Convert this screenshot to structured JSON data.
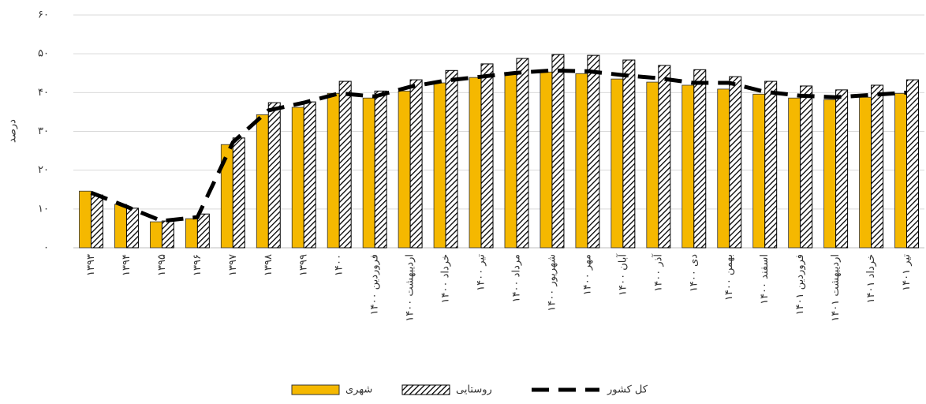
{
  "chart_data": {
    "type": "bar-line",
    "y_label": "درصد",
    "categories": [
      "۱۳۹۳",
      "۱۳۹۴",
      "۱۳۹۵",
      "۱۳۹۶",
      "۱۳۹۷",
      "۱۳۹۸",
      "۱۳۹۹",
      "۱۴۰۰",
      "فروردین ۱۴۰۰",
      "اردیبهشت ۱۴۰۰",
      "خرداد ۱۴۰۰",
      "تیر ۱۴۰۰",
      "مرداد ۱۴۰۰",
      "شهریور ۱۴۰۰",
      "مهر ۱۴۰۰",
      "آبان ۱۴۰۰",
      "آذر ۱۴۰۰",
      "دی ۱۴۰۰",
      "بهمن ۱۴۰۰",
      "اسفند ۱۴۰۰",
      "فروردین ۱۴۰۱",
      "اردیبهشت ۱۴۰۱",
      "خرداد ۱۴۰۱",
      "تیر ۱۴۰۱"
    ],
    "series": [
      {
        "name": "شهری",
        "color": "#f5b800",
        "style": "bar",
        "values": [
          14.6,
          11.2,
          6.7,
          7.5,
          26.6,
          34.3,
          36.2,
          39.8,
          38.6,
          40.4,
          42.5,
          43.9,
          44.7,
          45.3,
          44.9,
          43.5,
          42.7,
          41.9,
          40.9,
          39.6,
          38.6,
          38.2,
          38.8,
          39.8
        ]
      },
      {
        "name": "روستایی",
        "color": "#000000",
        "style": "hatched-bar",
        "values": [
          13.6,
          10.2,
          6.9,
          8.7,
          28.3,
          37.4,
          37.6,
          42.9,
          40.4,
          43.3,
          45.7,
          47.4,
          48.8,
          49.8,
          49.6,
          48.4,
          47.0,
          45.9,
          44.1,
          42.9,
          41.7,
          40.7,
          41.9,
          43.3
        ]
      },
      {
        "name": "کل کشور",
        "color": "#000000",
        "style": "dashed-line",
        "values": [
          14.2,
          10.6,
          6.9,
          7.9,
          27.2,
          35.4,
          37.4,
          39.8,
          39.0,
          41.5,
          43.1,
          44.1,
          45.1,
          45.7,
          45.5,
          44.5,
          43.7,
          42.5,
          42.5,
          40.2,
          39.2,
          38.8,
          39.4,
          40.0
        ]
      }
    ],
    "ylim": [
      0,
      60
    ],
    "yticks": [
      {
        "value": 0,
        "label": "۰"
      },
      {
        "value": 10,
        "label": "۱۰"
      },
      {
        "value": 20,
        "label": "۲۰"
      },
      {
        "value": 30,
        "label": "۳۰"
      },
      {
        "value": 40,
        "label": "۴۰"
      },
      {
        "value": 50,
        "label": "۵۰"
      },
      {
        "value": 60,
        "label": "۶۰"
      }
    ],
    "grid": true,
    "legend": "bottom"
  }
}
